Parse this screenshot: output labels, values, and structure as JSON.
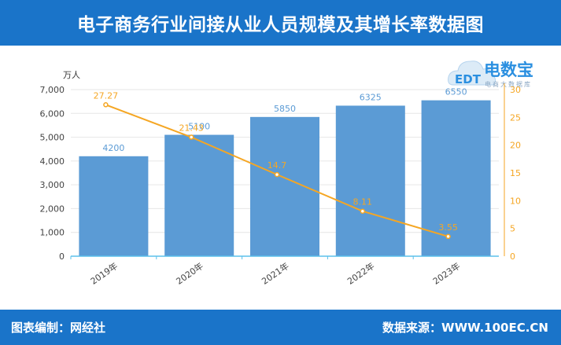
{
  "header": {
    "title": "电子商务行业间接从业人员规模及其增长率数据图"
  },
  "footer": {
    "left": "图表编制：网经社",
    "right": "数据来源：WWW.100EC.CN"
  },
  "logo": {
    "text": "电数宝",
    "badge": "EDT",
    "sub": "电商大数据库"
  },
  "colors": {
    "bar": "#5b9bd5",
    "bar_label": "#5b9bd5",
    "line": "#f5a623",
    "line_label": "#f5a623",
    "header": "#1a74c9"
  },
  "chart_data": {
    "type": "bar",
    "categories": [
      "2019年",
      "2020年",
      "2021年",
      "2022年",
      "2023年"
    ],
    "series": [
      {
        "name": "",
        "type": "bar",
        "axis": "left",
        "values": [
          4200,
          5100,
          5850,
          6325,
          6550
        ],
        "labels": [
          "4200",
          "5100",
          "5850",
          "6325",
          "6550"
        ]
      },
      {
        "name": "",
        "type": "line",
        "axis": "right",
        "values": [
          27.27,
          21.43,
          14.7,
          8.11,
          3.55
        ],
        "labels": [
          "27.27",
          "21.43",
          "14.7",
          "8.11",
          "3.55"
        ]
      }
    ],
    "yleft": {
      "unit": "万人",
      "range": [
        0,
        7000
      ],
      "ticks": [
        "0",
        "1,000",
        "2,000",
        "3,000",
        "4,000",
        "5,000",
        "6,000",
        "7,000"
      ]
    },
    "yright": {
      "range": [
        0,
        30
      ],
      "ticks": [
        "0",
        "5",
        "10",
        "15",
        "20",
        "25",
        "30"
      ]
    },
    "grid": true,
    "legend": "none"
  }
}
